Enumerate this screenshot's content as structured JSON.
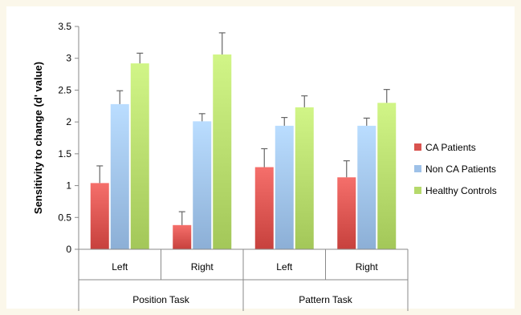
{
  "chart_data": {
    "type": "bar",
    "title": "",
    "ylabel": "Sensitivity to change (d' value)",
    "xlabel": "",
    "ylim": [
      0,
      3.5
    ],
    "yticks": [
      "0",
      "0.5",
      "1",
      "1.5",
      "2",
      "2.5",
      "3",
      "3.5"
    ],
    "groups": [
      {
        "label": "Position Task",
        "categories": [
          "Left",
          "Right"
        ]
      },
      {
        "label": "Pattern Task",
        "categories": [
          "Left",
          "Right"
        ]
      }
    ],
    "categories": [
      "Left",
      "Right",
      "Left",
      "Right"
    ],
    "series": [
      {
        "name": "CA Patients",
        "values": [
          1.04,
          0.38,
          1.29,
          1.13
        ],
        "errors": [
          0.27,
          0.21,
          0.29,
          0.26
        ],
        "color": "#d9534f"
      },
      {
        "name": "Non CA Patients",
        "values": [
          2.28,
          2.01,
          1.94,
          1.94
        ],
        "errors": [
          0.21,
          0.12,
          0.13,
          0.12
        ],
        "color": "#9ec1e8"
      },
      {
        "name": "Healthy Controls",
        "values": [
          2.92,
          3.06,
          2.23,
          2.3
        ],
        "errors": [
          0.16,
          0.34,
          0.18,
          0.21
        ],
        "color": "#b5d96b"
      }
    ],
    "grid": false,
    "legend_position": "right"
  }
}
